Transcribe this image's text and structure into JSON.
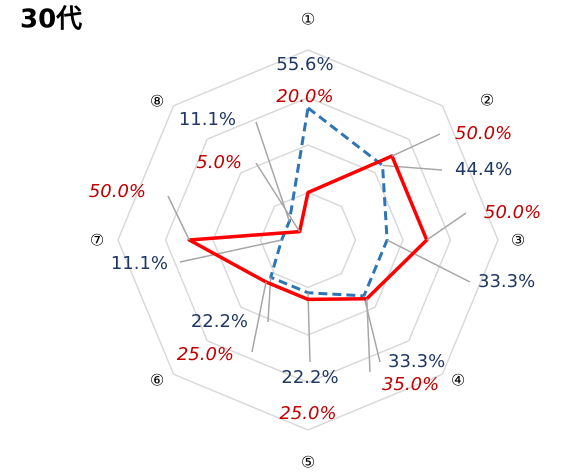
{
  "chart_data": {
    "type": "radar",
    "title": "30代",
    "categories": [
      "①",
      "②",
      "③",
      "④",
      "⑤",
      "⑥",
      "⑦",
      "⑧"
    ],
    "series": [
      {
        "color": "#2e75b6",
        "values": [
          55.6,
          44.4,
          33.3,
          33.3,
          22.2,
          22.2,
          11.1,
          11.1
        ],
        "value_labels": [
          "55.6%",
          "44.4%",
          "33.3%",
          "33.3%",
          "22.2%",
          "22.2%",
          "11.1%",
          "11.1%"
        ]
      },
      {
        "color": "#ff0000",
        "values": [
          20.0,
          50.0,
          50.0,
          35.0,
          25.0,
          25.0,
          50.0,
          5.0
        ],
        "value_labels": [
          "20.0%",
          "50.0%",
          "50.0%",
          "35.0%",
          "25.0%",
          "25.0%",
          "50.0%",
          "5.0%"
        ]
      }
    ],
    "ylim": [
      0,
      80
    ],
    "yticks": [
      20,
      40,
      60,
      80
    ],
    "grid": true
  }
}
